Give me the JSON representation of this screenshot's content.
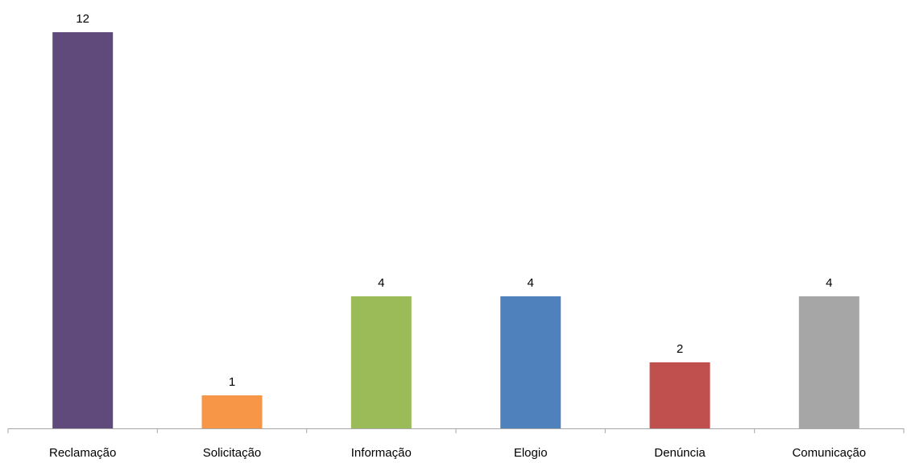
{
  "chart_data": {
    "type": "bar",
    "title": "",
    "xlabel": "",
    "ylabel": "",
    "categories": [
      "Reclamação",
      "Solicitação",
      "Informação",
      "Elogio",
      "Denúncia",
      "Comunicação"
    ],
    "values": [
      12,
      1,
      4,
      4,
      2,
      4
    ],
    "data_labels": [
      "12",
      "1",
      "4",
      "4",
      "2",
      "4"
    ],
    "colors": [
      "#604A7B",
      "#F79646",
      "#9BBB59",
      "#4F81BD",
      "#C0504D",
      "#A6A6A6"
    ],
    "ylim": [
      0,
      12
    ],
    "grid": false,
    "legend": "none",
    "axis_color": "#A6A6A6"
  }
}
